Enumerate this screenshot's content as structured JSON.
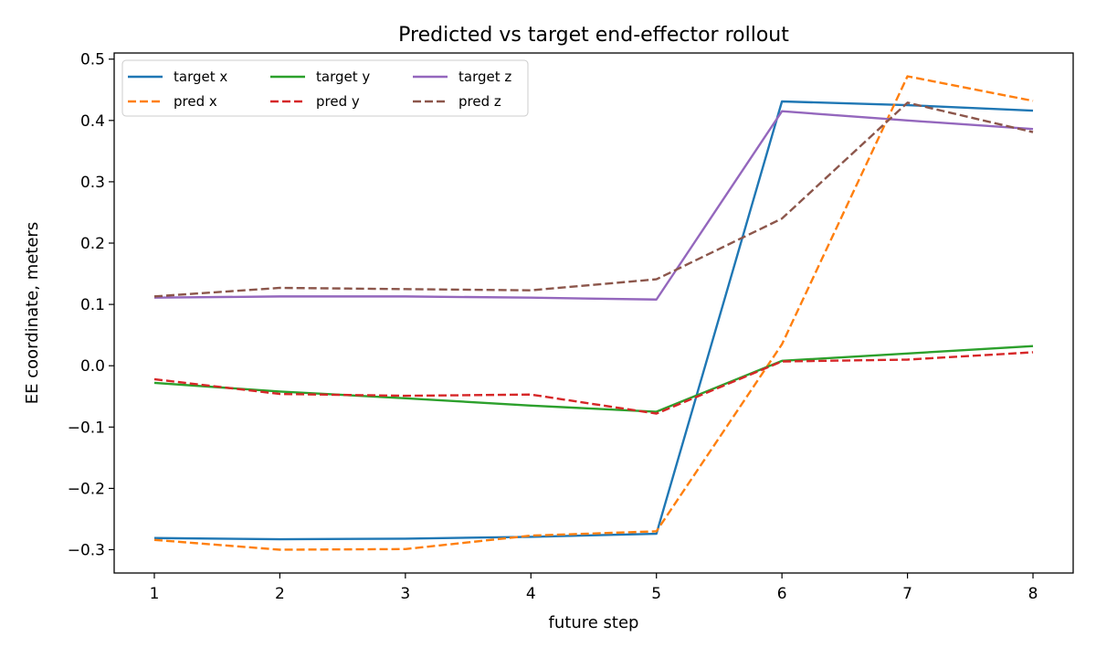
{
  "chart_data": {
    "type": "line",
    "title": "Predicted vs target end-effector rollout",
    "xlabel": "future step",
    "ylabel": "EE coordinate, meters",
    "x": [
      1,
      2,
      3,
      4,
      5,
      6,
      7,
      8
    ],
    "xticks": [
      1,
      2,
      3,
      4,
      5,
      6,
      7,
      8
    ],
    "yticks": [
      -0.3,
      -0.2,
      -0.1,
      0.0,
      0.1,
      0.2,
      0.3,
      0.4,
      0.5
    ],
    "ytick_labels": [
      "−0.3",
      "−0.2",
      "−0.1",
      "0.0",
      "0.1",
      "0.2",
      "0.3",
      "0.4",
      "0.5"
    ],
    "xlim": [
      0.68,
      8.32
    ],
    "ylim": [
      -0.338,
      0.51
    ],
    "grid": false,
    "legend": {
      "placement": "top-left",
      "columns": 3
    },
    "series": [
      {
        "name": "target x",
        "color": "#1f77b4",
        "style": "solid",
        "values": [
          -0.281,
          -0.283,
          -0.282,
          -0.279,
          -0.274,
          0.431,
          0.425,
          0.416
        ]
      },
      {
        "name": "pred x",
        "color": "#ff7f0e",
        "style": "dashed",
        "values": [
          -0.284,
          -0.3,
          -0.299,
          -0.277,
          -0.27,
          0.035,
          0.472,
          0.432
        ]
      },
      {
        "name": "target y",
        "color": "#2ca02c",
        "style": "solid",
        "values": [
          -0.028,
          -0.042,
          -0.053,
          -0.065,
          -0.075,
          0.008,
          0.02,
          0.032
        ]
      },
      {
        "name": "pred y",
        "color": "#d62728",
        "style": "dashed",
        "values": [
          -0.022,
          -0.046,
          -0.049,
          -0.047,
          -0.078,
          0.007,
          0.01,
          0.022
        ]
      },
      {
        "name": "target z",
        "color": "#9467bd",
        "style": "solid",
        "values": [
          0.111,
          0.113,
          0.113,
          0.111,
          0.108,
          0.415,
          0.4,
          0.386
        ]
      },
      {
        "name": "pred z",
        "color": "#8c564b",
        "style": "dashed",
        "values": [
          0.113,
          0.127,
          0.125,
          0.123,
          0.141,
          0.24,
          0.429,
          0.381
        ]
      }
    ]
  }
}
